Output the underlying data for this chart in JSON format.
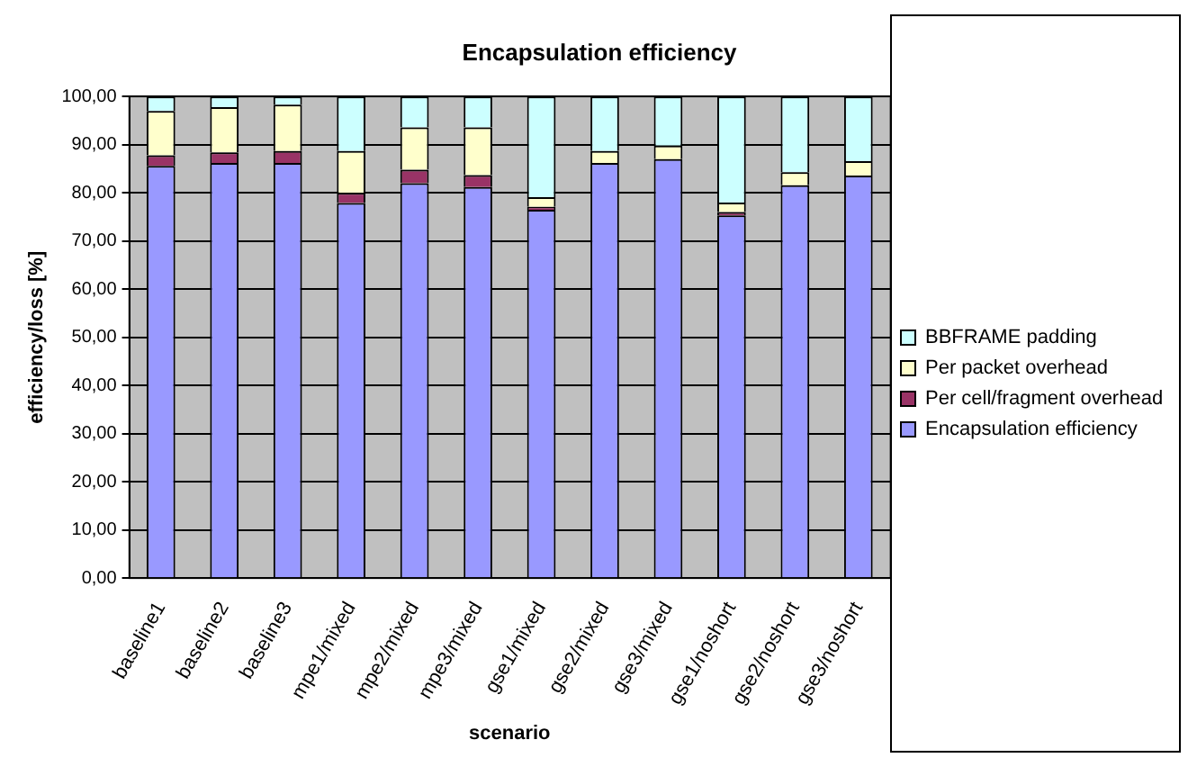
{
  "chart_data": {
    "type": "bar",
    "title": "Encapsulation efficiency",
    "xlabel": "scenario",
    "ylabel": "efficiency/loss [%]",
    "categories": [
      "baseline1",
      "baseline2",
      "baseline3",
      "mpe1/mixed",
      "mpe2/mixed",
      "mpe3/mixed",
      "gse1/mixed",
      "gse2/mixed",
      "gse3/mixed",
      "gse1/noshort",
      "gse2/noshort",
      "gse3/noshort"
    ],
    "stacked": true,
    "ylim": [
      0,
      100
    ],
    "yticks": [
      {
        "value": 0,
        "label": "0,00"
      },
      {
        "value": 10,
        "label": "10,00"
      },
      {
        "value": 20,
        "label": "20,00"
      },
      {
        "value": 30,
        "label": "30,00"
      },
      {
        "value": 40,
        "label": "40,00"
      },
      {
        "value": 50,
        "label": "50,00"
      },
      {
        "value": 60,
        "label": "60,00"
      },
      {
        "value": 70,
        "label": "70,00"
      },
      {
        "value": 80,
        "label": "80,00"
      },
      {
        "value": 90,
        "label": "90,00"
      },
      {
        "value": 100,
        "label": "100,00"
      }
    ],
    "grid": "y",
    "legend": "right",
    "series": [
      {
        "name": "Encapsulation efficiency",
        "color": "#9999ff",
        "values": [
          85.6,
          86.2,
          86.2,
          77.9,
          82.0,
          81.2,
          76.5,
          86.2,
          87.0,
          75.3,
          81.6,
          83.6
        ]
      },
      {
        "name": "Per cell/fragment overhead",
        "color": "#993366",
        "values": [
          2.2,
          2.2,
          2.5,
          2.1,
          2.8,
          2.5,
          0.6,
          0,
          0,
          0.7,
          0,
          0
        ]
      },
      {
        "name": "Per packet overhead",
        "color": "#ffffcc",
        "values": [
          9.2,
          9.4,
          9.6,
          8.7,
          8.8,
          9.9,
          2.0,
          2.5,
          2.8,
          2.0,
          2.7,
          3.0
        ]
      },
      {
        "name": "BBFRAME padding",
        "color": "#ccffff",
        "values": [
          3.0,
          2.2,
          1.7,
          11.3,
          6.4,
          6.4,
          20.9,
          11.3,
          10.2,
          22.0,
          15.7,
          13.4
        ]
      }
    ]
  }
}
